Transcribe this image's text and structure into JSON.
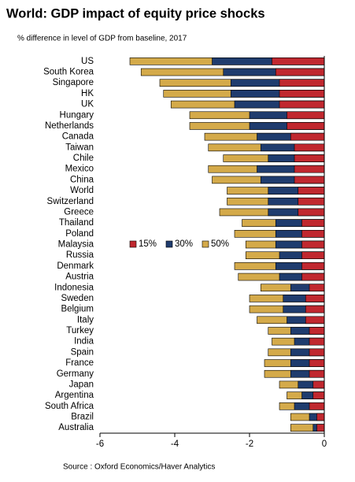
{
  "chart_data": {
    "type": "overlapping-hbar",
    "title": "World: GDP impact of equity price shocks",
    "subtitle": "% difference in level of GDP from baseline, 2017",
    "source": "Source : Oxford Economics/Haver Analytics",
    "categories": [
      "US",
      "South Korea",
      "Singapore",
      "HK",
      "UK",
      "Hungary",
      "Netherlands",
      "Canada",
      "Taiwan",
      "Chile",
      "Mexico",
      "China",
      "World",
      "Switzerland",
      "Greece",
      "Thailand",
      "Poland",
      "Malaysia",
      "Russia",
      "Denmark",
      "Austria",
      "Indonesia",
      "Sweden",
      "Belgium",
      "Italy",
      "Turkey",
      "India",
      "Spain",
      "France",
      "Germany",
      "Japan",
      "Argentina",
      "South Africa",
      "Brazil",
      "Australia"
    ],
    "series": [
      {
        "name": "15%",
        "color": "#c0282f",
        "values": [
          -1.4,
          -1.3,
          -1.2,
          -1.2,
          -1.2,
          -1.0,
          -1.0,
          -0.9,
          -0.8,
          -0.8,
          -0.8,
          -0.8,
          -0.7,
          -0.7,
          -0.7,
          -0.6,
          -0.6,
          -0.6,
          -0.6,
          -0.6,
          -0.6,
          -0.4,
          -0.5,
          -0.5,
          -0.5,
          -0.4,
          -0.4,
          -0.4,
          -0.4,
          -0.4,
          -0.3,
          -0.3,
          -0.4,
          -0.2,
          -0.2
        ]
      },
      {
        "name": "30%",
        "color": "#1f3c6e",
        "values": [
          -3.0,
          -2.7,
          -2.5,
          -2.5,
          -2.4,
          -2.0,
          -2.0,
          -1.8,
          -1.7,
          -1.5,
          -1.8,
          -1.7,
          -1.5,
          -1.5,
          -1.5,
          -1.3,
          -1.3,
          -1.3,
          -1.2,
          -1.3,
          -1.2,
          -0.9,
          -1.1,
          -1.1,
          -1.0,
          -0.9,
          -0.8,
          -0.9,
          -0.9,
          -0.9,
          -0.7,
          -0.6,
          -0.8,
          -0.4,
          -0.3
        ]
      },
      {
        "name": "50%",
        "color": "#d4aa4a",
        "values": [
          -5.2,
          -4.9,
          -4.4,
          -4.3,
          -4.1,
          -3.6,
          -3.6,
          -3.2,
          -3.1,
          -2.7,
          -3.1,
          -3.0,
          -2.6,
          -2.6,
          -2.8,
          -2.2,
          -2.4,
          -2.1,
          -2.1,
          -2.4,
          -2.3,
          -1.7,
          -2.0,
          -2.0,
          -1.8,
          -1.5,
          -1.4,
          -1.5,
          -1.6,
          -1.6,
          -1.2,
          -1.0,
          -1.2,
          -0.9,
          -0.9
        ]
      }
    ],
    "xlim": [
      -6,
      0
    ],
    "xticks": [
      -6,
      -4,
      -2,
      0
    ]
  }
}
